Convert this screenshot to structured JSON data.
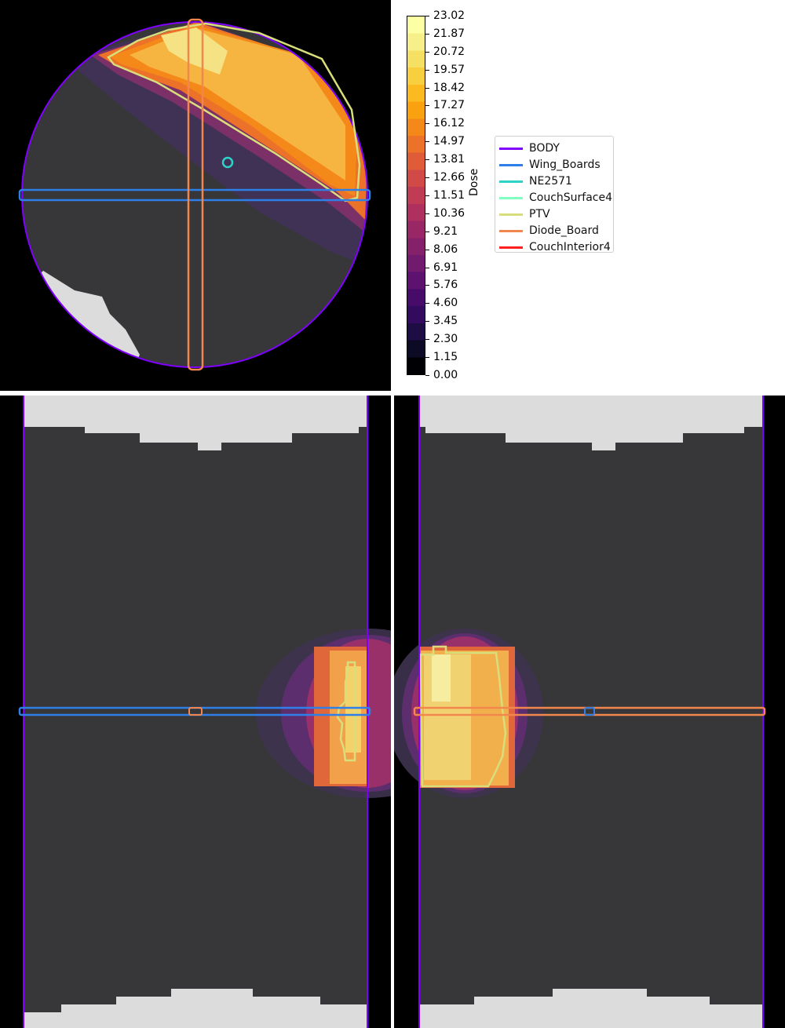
{
  "chart_data": {
    "type": "heatmap",
    "colorbar": {
      "label": "Dose",
      "colormap": "inferno-like",
      "range": [
        0.0,
        23.02
      ],
      "ticks": [
        "0.00",
        "1.15",
        "2.30",
        "3.45",
        "4.60",
        "5.76",
        "6.91",
        "8.06",
        "9.21",
        "10.36",
        "11.51",
        "12.66",
        "13.81",
        "14.97",
        "16.12",
        "17.27",
        "18.42",
        "19.57",
        "20.72",
        "21.87",
        "23.02"
      ],
      "colors": [
        "#000004",
        "#0d0a26",
        "#1e0c45",
        "#320a5e",
        "#470b6a",
        "#5c126e",
        "#711a6e",
        "#85216b",
        "#992766",
        "#ad305e",
        "#c03b54",
        "#d14a47",
        "#e05c38",
        "#ec7129",
        "#f4891a",
        "#f9a10e",
        "#fbba1f",
        "#f8cf3f",
        "#f6e063",
        "#f7f08a",
        "#fcffa4"
      ]
    },
    "legend": [
      {
        "name": "BODY",
        "color": "#7f00ff"
      },
      {
        "name": "Wing_Boards",
        "color": "#2f7fe8"
      },
      {
        "name": "NE2571",
        "color": "#2ed2c8"
      },
      {
        "name": "CouchSurface4",
        "color": "#80ffc0"
      },
      {
        "name": "PTV",
        "color": "#d9de7c"
      },
      {
        "name": "Diode_Board",
        "color": "#f2874e"
      },
      {
        "name": "CouchInterior4",
        "color": "#ff1f1f"
      }
    ],
    "views": [
      "axial",
      "sagittal",
      "coronal"
    ],
    "background_colors": {
      "outside": "#000000",
      "tissue": "#373739",
      "couch": "#dcdcdc"
    }
  }
}
